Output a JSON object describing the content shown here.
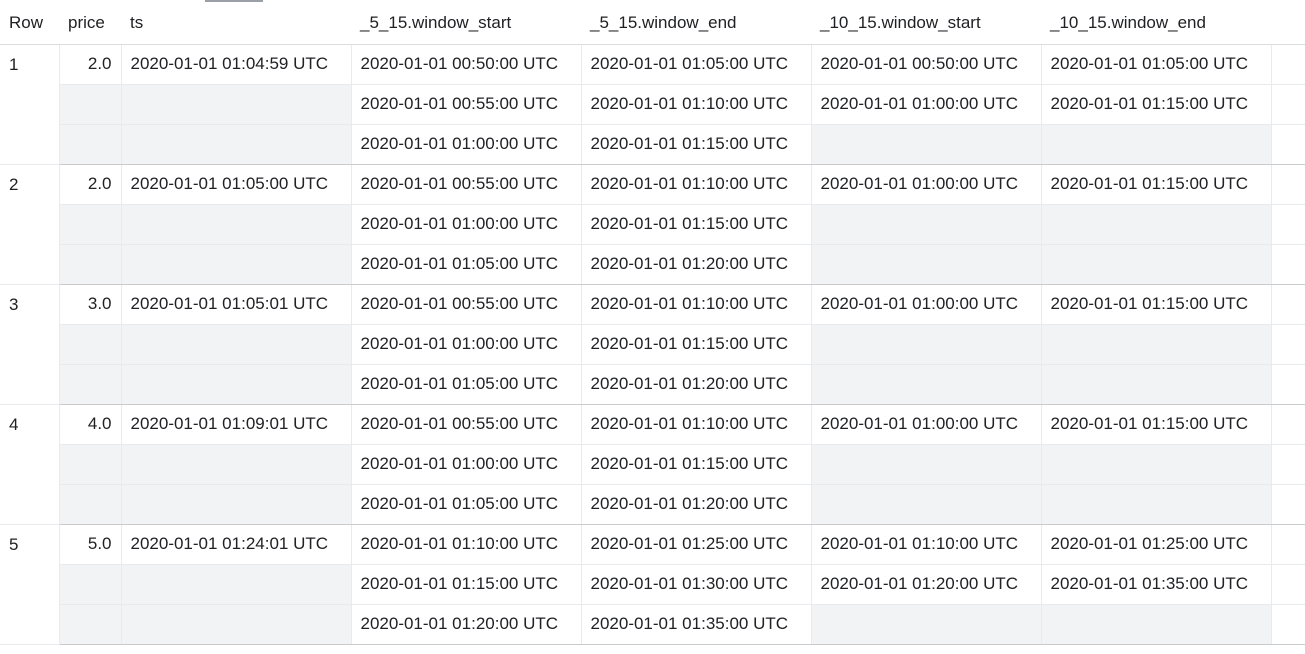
{
  "columns": [
    "Row",
    "price",
    "ts",
    "_5_15.window_start",
    "_5_15.window_end",
    "_10_15.window_start",
    "_10_15.window_end"
  ],
  "rows": [
    {
      "row": "1",
      "price": "2.0",
      "ts": "2020-01-01 01:04:59 UTC",
      "lines": [
        [
          "2020-01-01 00:50:00 UTC",
          "2020-01-01 01:05:00 UTC",
          "2020-01-01 00:50:00 UTC",
          "2020-01-01 01:05:00 UTC"
        ],
        [
          "2020-01-01 00:55:00 UTC",
          "2020-01-01 01:10:00 UTC",
          "2020-01-01 01:00:00 UTC",
          "2020-01-01 01:15:00 UTC"
        ],
        [
          "2020-01-01 01:00:00 UTC",
          "2020-01-01 01:15:00 UTC",
          "",
          ""
        ]
      ]
    },
    {
      "row": "2",
      "price": "2.0",
      "ts": "2020-01-01 01:05:00 UTC",
      "lines": [
        [
          "2020-01-01 00:55:00 UTC",
          "2020-01-01 01:10:00 UTC",
          "2020-01-01 01:00:00 UTC",
          "2020-01-01 01:15:00 UTC"
        ],
        [
          "2020-01-01 01:00:00 UTC",
          "2020-01-01 01:15:00 UTC",
          "",
          ""
        ],
        [
          "2020-01-01 01:05:00 UTC",
          "2020-01-01 01:20:00 UTC",
          "",
          ""
        ]
      ]
    },
    {
      "row": "3",
      "price": "3.0",
      "ts": "2020-01-01 01:05:01 UTC",
      "lines": [
        [
          "2020-01-01 00:55:00 UTC",
          "2020-01-01 01:10:00 UTC",
          "2020-01-01 01:00:00 UTC",
          "2020-01-01 01:15:00 UTC"
        ],
        [
          "2020-01-01 01:00:00 UTC",
          "2020-01-01 01:15:00 UTC",
          "",
          ""
        ],
        [
          "2020-01-01 01:05:00 UTC",
          "2020-01-01 01:20:00 UTC",
          "",
          ""
        ]
      ]
    },
    {
      "row": "4",
      "price": "4.0",
      "ts": "2020-01-01 01:09:01 UTC",
      "lines": [
        [
          "2020-01-01 00:55:00 UTC",
          "2020-01-01 01:10:00 UTC",
          "2020-01-01 01:00:00 UTC",
          "2020-01-01 01:15:00 UTC"
        ],
        [
          "2020-01-01 01:00:00 UTC",
          "2020-01-01 01:15:00 UTC",
          "",
          ""
        ],
        [
          "2020-01-01 01:05:00 UTC",
          "2020-01-01 01:20:00 UTC",
          "",
          ""
        ]
      ]
    },
    {
      "row": "5",
      "price": "5.0",
      "ts": "2020-01-01 01:24:01 UTC",
      "lines": [
        [
          "2020-01-01 01:10:00 UTC",
          "2020-01-01 01:25:00 UTC",
          "2020-01-01 01:10:00 UTC",
          "2020-01-01 01:25:00 UTC"
        ],
        [
          "2020-01-01 01:15:00 UTC",
          "2020-01-01 01:30:00 UTC",
          "2020-01-01 01:20:00 UTC",
          "2020-01-01 01:35:00 UTC"
        ],
        [
          "2020-01-01 01:20:00 UTC",
          "2020-01-01 01:35:00 UTC",
          "",
          ""
        ]
      ]
    }
  ]
}
